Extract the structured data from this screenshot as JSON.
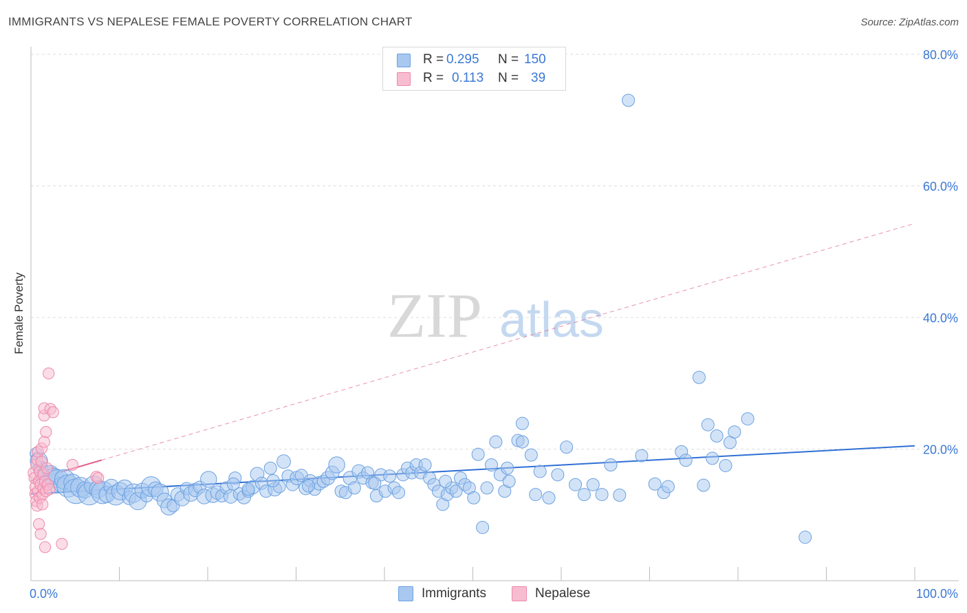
{
  "header": {
    "title": "IMMIGRANTS VS NEPALESE FEMALE POVERTY CORRELATION CHART",
    "source": "Source: ZipAtlas.com"
  },
  "watermark": {
    "zip": "ZIP",
    "atlas": "atlas"
  },
  "stats": {
    "immigrants": {
      "r_label": "R =",
      "r_value": "0.295",
      "n_label": "N =",
      "n_value": "150"
    },
    "nepalese": {
      "r_label": "R =",
      "r_value": "0.113",
      "n_label": "N =",
      "n_value": "39"
    }
  },
  "legend": {
    "immigrants": "Immigrants",
    "nepalese": "Nepalese"
  },
  "colors": {
    "immigrants_fill": "#a8c8f0",
    "immigrants_stroke": "#6aa0e0",
    "immigrants_line": "#2e6fd4",
    "nepalese_fill": "#f8bcd0",
    "nepalese_stroke": "#ee88aa",
    "nepalese_line": "#e0608a",
    "tick_label": "#3a78d4",
    "grid": "#dddddd"
  },
  "chart_data": {
    "type": "scatter",
    "title": "IMMIGRANTS VS NEPALESE FEMALE POVERTY CORRELATION CHART",
    "xlabel": "",
    "ylabel": "Female Poverty",
    "xlim": [
      0,
      100
    ],
    "ylim": [
      0,
      80
    ],
    "x_tick_labels": [
      "0.0%",
      "100.0%"
    ],
    "y_ticks": [
      20,
      40,
      60,
      80
    ],
    "y_tick_labels": [
      "20.0%",
      "40.0%",
      "60.0%",
      "80.0%"
    ],
    "grid": true,
    "series": [
      {
        "name": "Immigrants",
        "r": 0.295,
        "n": 150,
        "trend": {
          "x": [
            0,
            100
          ],
          "y": [
            13.2,
            20.5
          ]
        },
        "points": [
          [
            0.6,
            19.3,
            10
          ],
          [
            0.9,
            18.2,
            14
          ],
          [
            1.1,
            17.0,
            12
          ],
          [
            1.4,
            16.4,
            10
          ],
          [
            1.8,
            15.8,
            18
          ],
          [
            2.2,
            16.3,
            13
          ],
          [
            2.6,
            15.6,
            16
          ],
          [
            3.0,
            15.1,
            19
          ],
          [
            3.4,
            14.6,
            12
          ],
          [
            3.8,
            15.4,
            16
          ],
          [
            4.2,
            14.4,
            18
          ],
          [
            4.7,
            14.9,
            14
          ],
          [
            5.1,
            13.6,
            20
          ],
          [
            5.6,
            14.2,
            16
          ],
          [
            6.1,
            13.8,
            13
          ],
          [
            6.6,
            13.2,
            18
          ],
          [
            7.1,
            14.5,
            15
          ],
          [
            7.6,
            13.9,
            14
          ],
          [
            8.1,
            13.4,
            18
          ],
          [
            8.6,
            13.1,
            13
          ],
          [
            9.1,
            14.3,
            12
          ],
          [
            9.6,
            13.0,
            16
          ],
          [
            10.1,
            13.6,
            14
          ],
          [
            10.6,
            14.1,
            13
          ],
          [
            11.1,
            12.6,
            11
          ],
          [
            11.6,
            13.3,
            15
          ],
          [
            12.1,
            12.1,
            14
          ],
          [
            12.6,
            13.7,
            12
          ],
          [
            13.1,
            12.9,
            10
          ],
          [
            13.6,
            14.3,
            16
          ],
          [
            14.1,
            13.9,
            12
          ],
          [
            14.6,
            13.4,
            14
          ],
          [
            15.1,
            12.2,
            12
          ],
          [
            15.6,
            11.2,
            13
          ],
          [
            16.1,
            11.4,
            10
          ],
          [
            16.6,
            13.1,
            11
          ],
          [
            17.1,
            12.5,
            12
          ],
          [
            17.6,
            14.0,
            10
          ],
          [
            18.1,
            13.2,
            12
          ],
          [
            18.6,
            13.8,
            11
          ],
          [
            19.1,
            14.2,
            10
          ],
          [
            19.6,
            12.8,
            12
          ],
          [
            20.1,
            15.4,
            13
          ],
          [
            20.6,
            13.0,
            12
          ],
          [
            21.1,
            13.4,
            11
          ],
          [
            21.6,
            12.9,
            10
          ],
          [
            22.1,
            14.1,
            10
          ],
          [
            22.6,
            12.8,
            11
          ],
          [
            23.1,
            15.6,
            10
          ],
          [
            23.6,
            13.2,
            10
          ],
          [
            24.1,
            12.7,
            11
          ],
          [
            24.6,
            13.6,
            10
          ],
          [
            25.1,
            14.2,
            11
          ],
          [
            25.6,
            16.2,
            11
          ],
          [
            26.1,
            14.8,
            10
          ],
          [
            26.6,
            13.6,
            10
          ],
          [
            27.1,
            17.1,
            10
          ],
          [
            27.6,
            13.9,
            11
          ],
          [
            28.1,
            14.3,
            10
          ],
          [
            28.6,
            18.1,
            11
          ],
          [
            29.1,
            15.9,
            10
          ],
          [
            29.6,
            14.6,
            10
          ],
          [
            30.1,
            15.6,
            11
          ],
          [
            30.6,
            16.0,
            10
          ],
          [
            31.1,
            14.1,
            11
          ],
          [
            31.6,
            15.2,
            10
          ],
          [
            32.1,
            13.9,
            10
          ],
          [
            32.6,
            14.8,
            11
          ],
          [
            33.1,
            15.1,
            10
          ],
          [
            33.6,
            15.6,
            11
          ],
          [
            34.1,
            16.4,
            11
          ],
          [
            34.6,
            17.6,
            13
          ],
          [
            35.1,
            13.6,
            10
          ],
          [
            35.6,
            13.4,
            10
          ],
          [
            36.1,
            15.6,
            11
          ],
          [
            36.6,
            14.1,
            10
          ],
          [
            37.1,
            16.6,
            11
          ],
          [
            37.6,
            15.6,
            10
          ],
          [
            38.1,
            16.4,
            10
          ],
          [
            38.6,
            14.9,
            10
          ],
          [
            39.1,
            12.9,
            10
          ],
          [
            39.6,
            16.1,
            10
          ],
          [
            40.1,
            13.6,
            10
          ],
          [
            40.6,
            15.9,
            10
          ],
          [
            41.1,
            14.1,
            10
          ],
          [
            41.6,
            13.4,
            10
          ],
          [
            42.1,
            16.1,
            10
          ],
          [
            42.6,
            17.1,
            10
          ],
          [
            43.1,
            16.4,
            10
          ],
          [
            43.6,
            17.6,
            10
          ],
          [
            44.1,
            16.4,
            10
          ],
          [
            44.6,
            17.6,
            10
          ],
          [
            45.1,
            15.6,
            10
          ],
          [
            45.6,
            14.6,
            10
          ],
          [
            46.1,
            13.6,
            10
          ],
          [
            46.6,
            11.6,
            10
          ],
          [
            47.1,
            13.1,
            10
          ],
          [
            47.6,
            14.1,
            10
          ],
          [
            48.1,
            13.6,
            10
          ],
          [
            48.6,
            15.6,
            10
          ],
          [
            49.1,
            14.6,
            10
          ],
          [
            49.6,
            14.1,
            10
          ],
          [
            50.1,
            12.6,
            10
          ],
          [
            50.6,
            19.2,
            10
          ],
          [
            51.1,
            8.1,
            10
          ],
          [
            51.6,
            14.1,
            10
          ],
          [
            52.1,
            17.6,
            10
          ],
          [
            52.6,
            21.1,
            10
          ],
          [
            53.1,
            16.1,
            10
          ],
          [
            53.6,
            13.6,
            10
          ],
          [
            54.1,
            15.1,
            10
          ],
          [
            55.1,
            21.3,
            10
          ],
          [
            55.6,
            23.9,
            10
          ],
          [
            55.6,
            21.1,
            10
          ],
          [
            56.6,
            19.1,
            10
          ],
          [
            57.6,
            16.6,
            10
          ],
          [
            58.6,
            12.6,
            10
          ],
          [
            59.6,
            16.1,
            10
          ],
          [
            60.6,
            20.3,
            10
          ],
          [
            61.6,
            14.6,
            10
          ],
          [
            62.6,
            13.1,
            10
          ],
          [
            63.6,
            14.6,
            10
          ],
          [
            64.6,
            13.1,
            10
          ],
          [
            65.6,
            17.6,
            10
          ],
          [
            66.6,
            13.0,
            10
          ],
          [
            67.6,
            73.0,
            10
          ],
          [
            69.1,
            19.0,
            10
          ],
          [
            70.6,
            14.7,
            10
          ],
          [
            71.6,
            13.4,
            10
          ],
          [
            72.1,
            14.3,
            10
          ],
          [
            73.6,
            19.6,
            10
          ],
          [
            74.1,
            18.3,
            10
          ],
          [
            75.6,
            30.9,
            10
          ],
          [
            76.1,
            14.5,
            10
          ],
          [
            76.6,
            23.7,
            10
          ],
          [
            77.1,
            18.6,
            10
          ],
          [
            77.6,
            22.0,
            10
          ],
          [
            78.6,
            17.5,
            10
          ],
          [
            79.1,
            21.0,
            10
          ],
          [
            79.6,
            22.6,
            10
          ],
          [
            81.1,
            24.6,
            10
          ],
          [
            87.6,
            6.6,
            10
          ],
          [
            24.6,
            13.9,
            10
          ],
          [
            31.4,
            14.4,
            10
          ],
          [
            27.4,
            15.2,
            10
          ],
          [
            22.9,
            14.7,
            10
          ],
          [
            38.9,
            14.8,
            10
          ],
          [
            46.9,
            15.1,
            10
          ],
          [
            53.9,
            17.1,
            10
          ],
          [
            57.1,
            13.1,
            10
          ]
        ]
      },
      {
        "name": "Nepalese",
        "r": 0.113,
        "n": 39,
        "trend": {
          "x": [
            0,
            100
          ],
          "y": [
            15.2,
            54.3
          ]
        },
        "trend_solid_until": 8,
        "points": [
          [
            0.3,
            16.4,
            9
          ],
          [
            0.4,
            15.6,
            9
          ],
          [
            0.5,
            14.2,
            9
          ],
          [
            0.5,
            13.2,
            9
          ],
          [
            0.6,
            12.1,
            9
          ],
          [
            0.6,
            17.6,
            9
          ],
          [
            0.7,
            18.4,
            9
          ],
          [
            0.7,
            11.4,
            9
          ],
          [
            0.8,
            13.6,
            9
          ],
          [
            0.8,
            19.6,
            9
          ],
          [
            0.9,
            15.1,
            9
          ],
          [
            0.9,
            8.6,
            9
          ],
          [
            1.0,
            16.6,
            9
          ],
          [
            1.0,
            12.6,
            9
          ],
          [
            1.1,
            14.6,
            9
          ],
          [
            1.1,
            7.1,
            9
          ],
          [
            1.2,
            20.1,
            9
          ],
          [
            1.2,
            18.1,
            9
          ],
          [
            1.3,
            13.1,
            9
          ],
          [
            1.3,
            11.6,
            9
          ],
          [
            1.4,
            16.1,
            9
          ],
          [
            1.4,
            14.1,
            9
          ],
          [
            1.5,
            21.1,
            9
          ],
          [
            1.5,
            25.1,
            9
          ],
          [
            1.5,
            26.2,
            9
          ],
          [
            1.6,
            15.1,
            9
          ],
          [
            1.6,
            5.1,
            9
          ],
          [
            1.7,
            22.6,
            9
          ],
          [
            1.7,
            13.6,
            9
          ],
          [
            1.8,
            17.1,
            9
          ],
          [
            1.9,
            14.6,
            9
          ],
          [
            2.0,
            31.5,
            9
          ],
          [
            2.1,
            13.9,
            9
          ],
          [
            2.2,
            26.1,
            9
          ],
          [
            2.5,
            25.6,
            9
          ],
          [
            3.5,
            5.6,
            9
          ],
          [
            4.7,
            17.6,
            9
          ],
          [
            7.4,
            15.8,
            9
          ],
          [
            7.6,
            15.6,
            9
          ]
        ]
      }
    ]
  }
}
